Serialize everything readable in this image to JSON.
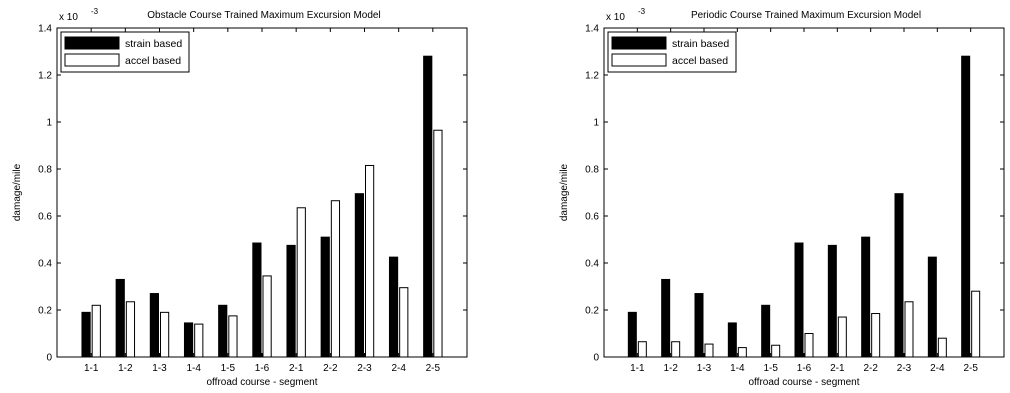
{
  "chart_data": [
    {
      "type": "bar",
      "title": "Obstacle Course Trained Maximum Excursion Model",
      "xlabel": "offroad course - segment",
      "ylabel": "damage/mile",
      "y_multiplier": "x 10",
      "y_exponent": "-3",
      "ylim": [
        0,
        1.4
      ],
      "yticks": [
        "0",
        "0.2",
        "0.4",
        "0.6",
        "0.8",
        "1",
        "1.2",
        "1.4"
      ],
      "grid": false,
      "legend": "top-left",
      "categories": [
        "1-1",
        "1-2",
        "1-3",
        "1-4",
        "1-5",
        "1-6",
        "2-1",
        "2-2",
        "2-3",
        "2-4",
        "2-5"
      ],
      "series": [
        {
          "name": "strain based",
          "color": "#000000",
          "values": [
            0.19,
            0.33,
            0.27,
            0.145,
            0.22,
            0.485,
            0.475,
            0.51,
            0.695,
            0.425,
            1.28
          ]
        },
        {
          "name": "accel based",
          "color": "#ffffff",
          "values": [
            0.22,
            0.235,
            0.19,
            0.14,
            0.175,
            0.345,
            0.635,
            0.665,
            0.815,
            0.295,
            0.965
          ]
        }
      ]
    },
    {
      "type": "bar",
      "title": "Periodic Course Trained Maximum Excursion Model",
      "xlabel": "offroad course - segment",
      "ylabel": "damage/mile",
      "y_multiplier": "x 10",
      "y_exponent": "-3",
      "ylim": [
        0,
        1.4
      ],
      "yticks": [
        "0",
        "0.2",
        "0.4",
        "0.6",
        "0.8",
        "1",
        "1.2",
        "1.4"
      ],
      "grid": false,
      "legend": "top-left",
      "categories": [
        "1-1",
        "1-2",
        "1-3",
        "1-4",
        "1-5",
        "1-6",
        "2-1",
        "2-2",
        "2-3",
        "2-4",
        "2-5"
      ],
      "series": [
        {
          "name": "strain based",
          "color": "#000000",
          "values": [
            0.19,
            0.33,
            0.27,
            0.145,
            0.22,
            0.485,
            0.475,
            0.51,
            0.695,
            0.425,
            1.28
          ]
        },
        {
          "name": "accel based",
          "color": "#ffffff",
          "values": [
            0.065,
            0.065,
            0.055,
            0.04,
            0.05,
            0.1,
            0.17,
            0.185,
            0.235,
            0.08,
            0.28
          ]
        }
      ]
    }
  ]
}
